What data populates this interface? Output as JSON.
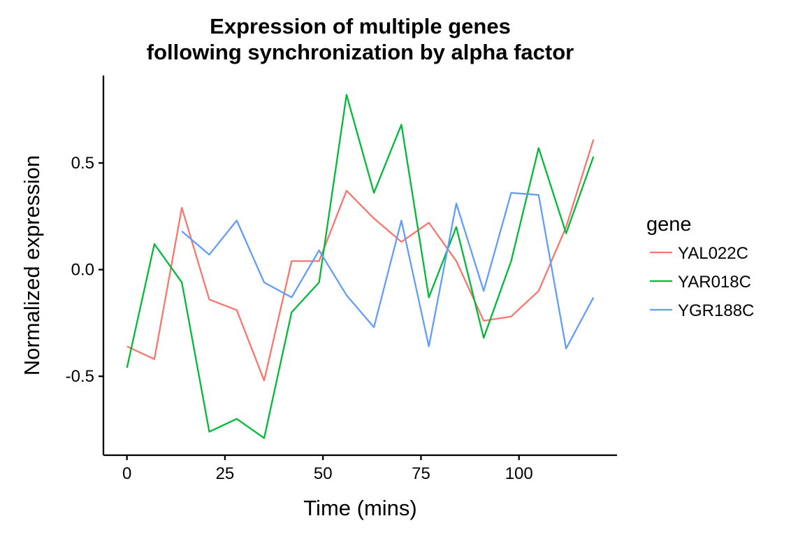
{
  "chart_data": {
    "type": "line",
    "title": "Expression of multiple genes\nfollowing synchronization by alpha factor",
    "xlabel": "Time (mins)",
    "ylabel": "Normalized expression",
    "xlim": [
      -6,
      125
    ],
    "ylim": [
      -0.87,
      0.91
    ],
    "x_ticks": [
      0,
      25,
      50,
      75,
      100
    ],
    "x_tick_labels": [
      "0",
      "25",
      "50",
      "75",
      "100"
    ],
    "y_ticks": [
      -0.5,
      0.0,
      0.5
    ],
    "y_tick_labels": [
      "-0.5",
      "0.0",
      "0.5"
    ],
    "grid": false,
    "legend": {
      "title": "gene",
      "position": "right"
    },
    "series": [
      {
        "name": "YAL022C",
        "color": "#F8766D",
        "points": [
          [
            0,
            -0.36
          ],
          [
            7,
            -0.42
          ],
          [
            14,
            0.29
          ],
          [
            21,
            -0.14
          ],
          [
            28,
            -0.19
          ],
          [
            35,
            -0.52
          ],
          [
            42,
            0.04
          ],
          [
            49,
            0.04
          ],
          [
            56,
            0.37
          ],
          [
            63,
            0.24
          ],
          [
            70,
            0.13
          ],
          [
            77,
            0.22
          ],
          [
            84,
            0.04
          ],
          [
            91,
            -0.24
          ],
          [
            98,
            -0.22
          ],
          [
            105,
            -0.1
          ],
          [
            112,
            0.2
          ],
          [
            119,
            0.61
          ]
        ]
      },
      {
        "name": "YAR018C",
        "color": "#00BA38",
        "points": [
          [
            0,
            -0.46
          ],
          [
            7,
            0.12
          ],
          [
            14,
            -0.06
          ],
          [
            21,
            -0.76
          ],
          [
            28,
            -0.7
          ],
          [
            35,
            -0.79
          ],
          [
            42,
            -0.2
          ],
          [
            49,
            -0.06
          ],
          [
            56,
            0.82
          ],
          [
            63,
            0.36
          ],
          [
            70,
            0.68
          ],
          [
            77,
            -0.13
          ],
          [
            84,
            0.2
          ],
          [
            91,
            -0.32
          ],
          [
            98,
            0.04
          ],
          [
            105,
            0.57
          ],
          [
            112,
            0.17
          ],
          [
            119,
            0.53
          ]
        ]
      },
      {
        "name": "YGR188C",
        "color": "#619CFF",
        "points": [
          [
            14,
            0.18
          ],
          [
            21,
            0.07
          ],
          [
            28,
            0.23
          ],
          [
            35,
            -0.06
          ],
          [
            42,
            -0.13
          ],
          [
            49,
            0.09
          ],
          [
            56,
            -0.12
          ],
          [
            63,
            -0.27
          ],
          [
            70,
            0.23
          ],
          [
            77,
            -0.36
          ],
          [
            84,
            0.31
          ],
          [
            91,
            -0.1
          ],
          [
            98,
            0.36
          ],
          [
            105,
            0.35
          ],
          [
            112,
            -0.37
          ],
          [
            119,
            -0.13
          ]
        ]
      }
    ]
  }
}
